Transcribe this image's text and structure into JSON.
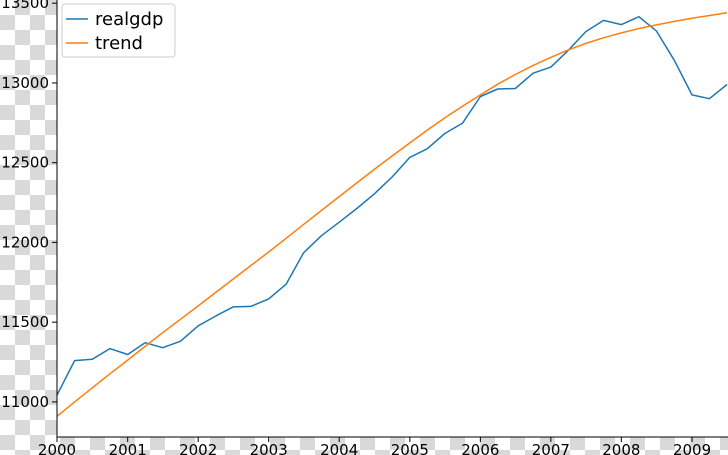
{
  "chart_data": {
    "type": "line",
    "title": "",
    "xlabel": "",
    "ylabel": "",
    "xlim": [
      "2000-01-01",
      "2009-07-01"
    ],
    "ylim": [
      10780,
      13520
    ],
    "x_tick_labels": [
      "2000",
      "2001",
      "2002",
      "2003",
      "2004",
      "2005",
      "2006",
      "2007",
      "2008",
      "2009"
    ],
    "y_tick_labels": [
      "11000",
      "11500",
      "12000",
      "12500",
      "13000",
      "13500"
    ],
    "y_tick_values": [
      11000,
      11500,
      12000,
      12500,
      13000,
      13500
    ],
    "legend_position": "top-left",
    "grid": false,
    "x": [
      "2000-01-01",
      "2000-04-01",
      "2000-07-01",
      "2000-10-01",
      "2001-01-01",
      "2001-04-01",
      "2001-07-01",
      "2001-10-01",
      "2002-01-01",
      "2002-04-01",
      "2002-07-01",
      "2002-10-01",
      "2003-01-01",
      "2003-04-01",
      "2003-07-01",
      "2003-10-01",
      "2004-01-01",
      "2004-04-01",
      "2004-07-01",
      "2004-10-01",
      "2005-01-01",
      "2005-04-01",
      "2005-07-01",
      "2005-10-01",
      "2006-01-01",
      "2006-04-01",
      "2006-07-01",
      "2006-10-01",
      "2007-01-01",
      "2007-04-01",
      "2007-07-01",
      "2007-10-01",
      "2008-01-01",
      "2008-04-01",
      "2008-07-01",
      "2008-10-01",
      "2009-01-01",
      "2009-04-01",
      "2009-07-01"
    ],
    "series": [
      {
        "name": "realgdp",
        "color": "#1f77b4",
        "values": [
          11043,
          11259,
          11267,
          11334,
          11297,
          11371,
          11340,
          11380,
          11477,
          11538,
          11596,
          11599,
          11646,
          11738,
          11935,
          12042,
          12127,
          12213,
          12304,
          12410,
          12534,
          12587,
          12683,
          12748,
          12915,
          12962,
          12965,
          13061,
          13099,
          13204,
          13322,
          13392,
          13366,
          13415,
          13325,
          13142,
          12925,
          12901,
          12990
        ]
      },
      {
        "name": "trend",
        "color": "#ff7f0e",
        "values": [
          10910,
          11000,
          11088,
          11176,
          11262,
          11348,
          11434,
          11518,
          11602,
          11686,
          11770,
          11855,
          11940,
          12026,
          12113,
          12200,
          12287,
          12373,
          12458,
          12542,
          12624,
          12704,
          12781,
          12855,
          12925,
          12992,
          13053,
          13110,
          13161,
          13207,
          13248,
          13283,
          13314,
          13341,
          13364,
          13386,
          13405,
          13423,
          13440
        ]
      }
    ]
  }
}
